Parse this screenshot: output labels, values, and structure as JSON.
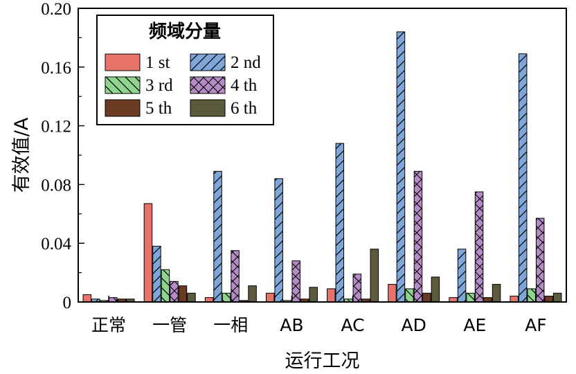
{
  "chart_data": {
    "type": "bar",
    "xlabel": "运行工况",
    "ylabel": "有效值/A",
    "ylim": [
      0,
      0.2
    ],
    "yticks": [
      "0",
      "0.04",
      "0.08",
      "0.12",
      "0.16",
      "0.20"
    ],
    "ytick_values": [
      0,
      0.04,
      0.08,
      0.12,
      0.16,
      0.2
    ],
    "categories": [
      "正常",
      "一管",
      "一相",
      "AB",
      "AC",
      "AD",
      "AE",
      "AF"
    ],
    "legend": {
      "title": "频域分量",
      "placement": "top-left"
    },
    "series": [
      {
        "name": "1 st",
        "color": "#e8736b",
        "pattern": "solid",
        "values": [
          0.005,
          0.067,
          0.003,
          0.006,
          0.009,
          0.012,
          0.003,
          0.004
        ]
      },
      {
        "name": "2 nd",
        "color": "#7ea6d8",
        "pattern": "diagonal",
        "values": [
          0.002,
          0.038,
          0.089,
          0.084,
          0.108,
          0.184,
          0.036,
          0.169
        ]
      },
      {
        "name": "3 rd",
        "color": "#8fd48f",
        "pattern": "backdiagonal",
        "values": [
          0.001,
          0.022,
          0.006,
          0.001,
          0.002,
          0.009,
          0.006,
          0.009
        ]
      },
      {
        "name": "4 th",
        "color": "#b48bc4",
        "pattern": "cross",
        "values": [
          0.003,
          0.014,
          0.035,
          0.028,
          0.019,
          0.089,
          0.075,
          0.057
        ]
      },
      {
        "name": "5 th",
        "color": "#6b3a22",
        "pattern": "solid",
        "values": [
          0.002,
          0.011,
          0.001,
          0.002,
          0.002,
          0.006,
          0.003,
          0.004
        ]
      },
      {
        "name": "6 th",
        "color": "#5c5a3c",
        "pattern": "solid",
        "values": [
          0.002,
          0.006,
          0.011,
          0.01,
          0.036,
          0.017,
          0.012,
          0.006
        ]
      }
    ]
  }
}
